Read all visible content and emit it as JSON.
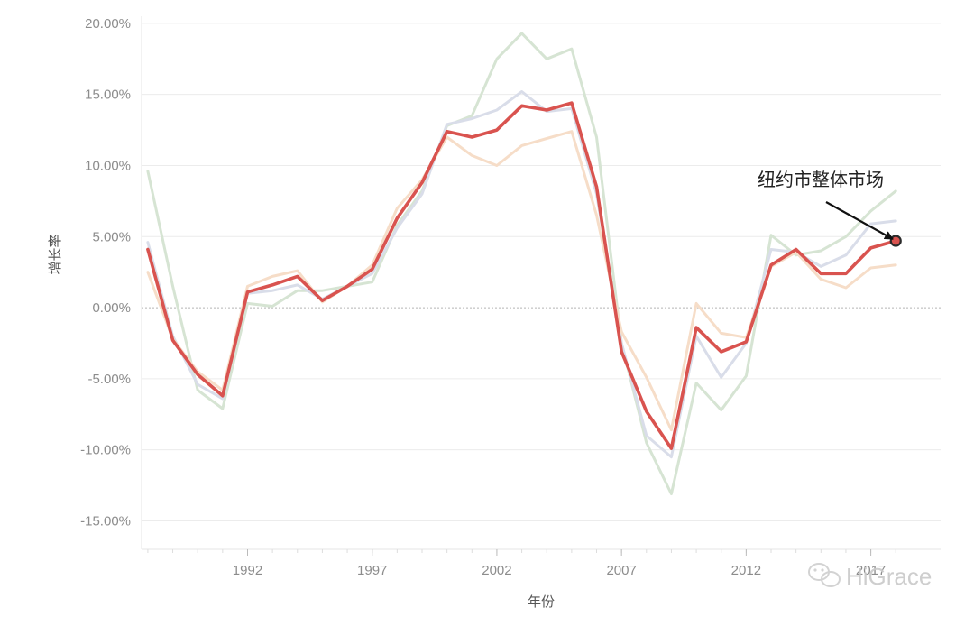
{
  "chart_data": {
    "type": "line",
    "title": "",
    "xlabel": "年份",
    "ylabel": "增长率",
    "x": [
      1988,
      1989,
      1990,
      1991,
      1992,
      1993,
      1994,
      1995,
      1996,
      1997,
      1998,
      1999,
      2000,
      2001,
      2002,
      2003,
      2004,
      2005,
      2006,
      2007,
      2008,
      2009,
      2010,
      2011,
      2012,
      2013,
      2014,
      2015,
      2016,
      2017,
      2018
    ],
    "x_ticks": [
      1992,
      1997,
      2002,
      2007,
      2012,
      2017
    ],
    "x_tick_labels": [
      "1992",
      "1997",
      "2002",
      "2007",
      "2012",
      "2017"
    ],
    "xlim": [
      1987.75,
      2019.8
    ],
    "ylim": [
      -17,
      20.5
    ],
    "y_ticks": [
      20,
      15,
      10,
      5,
      0,
      -5,
      -10,
      -15
    ],
    "y_tick_labels": [
      "20.00%",
      "15.00%",
      "10.00%",
      "5.00%",
      "0.00%",
      "-5.00%",
      "-10.00%",
      "-15.00%"
    ],
    "grid": true,
    "series": [
      {
        "color": "#d6e4d3",
        "highlight": false,
        "values": [
          9.6,
          1.5,
          -5.8,
          -7.1,
          0.3,
          0.1,
          1.2,
          1.2,
          1.5,
          1.8,
          5.8,
          8.2,
          12.8,
          13.5,
          17.5,
          19.3,
          17.5,
          18.2,
          12.0,
          -2.5,
          -9.5,
          -13.1,
          -5.3,
          -7.2,
          -4.8,
          5.1,
          3.7,
          4.0,
          5.0,
          6.8,
          8.2
        ]
      },
      {
        "color": "#d9dde9",
        "highlight": false,
        "values": [
          4.6,
          -2.0,
          -5.4,
          -6.4,
          1.0,
          1.2,
          1.6,
          0.6,
          1.5,
          2.4,
          5.6,
          8.0,
          12.9,
          13.3,
          13.9,
          15.2,
          13.8,
          14.0,
          8.0,
          -2.5,
          -9.0,
          -10.5,
          -2.0,
          -4.9,
          -2.5,
          4.1,
          3.9,
          2.9,
          3.7,
          5.9,
          6.1
        ]
      },
      {
        "color": "#f6ddc8",
        "highlight": false,
        "values": [
          2.5,
          -2.2,
          -4.5,
          -5.8,
          1.5,
          2.2,
          2.6,
          0.4,
          1.5,
          3.0,
          7.0,
          9.0,
          12.0,
          10.7,
          10.0,
          11.4,
          11.9,
          12.4,
          6.5,
          -1.7,
          -4.9,
          -8.6,
          0.3,
          -1.8,
          -2.1,
          2.9,
          3.9,
          2.0,
          1.4,
          2.8,
          3.0
        ]
      },
      {
        "name": "纽约市整体市场",
        "color": "#d9534f",
        "highlight": true,
        "values": [
          4.1,
          -2.3,
          -4.7,
          -6.2,
          1.1,
          1.6,
          2.2,
          0.5,
          1.5,
          2.7,
          6.3,
          8.8,
          12.4,
          12.0,
          12.5,
          14.2,
          13.9,
          14.4,
          8.5,
          -3.1,
          -7.3,
          -9.9,
          -1.4,
          -3.1,
          -2.4,
          3.0,
          4.1,
          2.4,
          2.4,
          4.2,
          4.7
        ]
      }
    ],
    "annotation": {
      "text": "纽约市整体市场",
      "series_index": 3,
      "point_index": 30
    }
  },
  "watermark": {
    "text": "HiGrace",
    "icon": "wechat-icon"
  }
}
